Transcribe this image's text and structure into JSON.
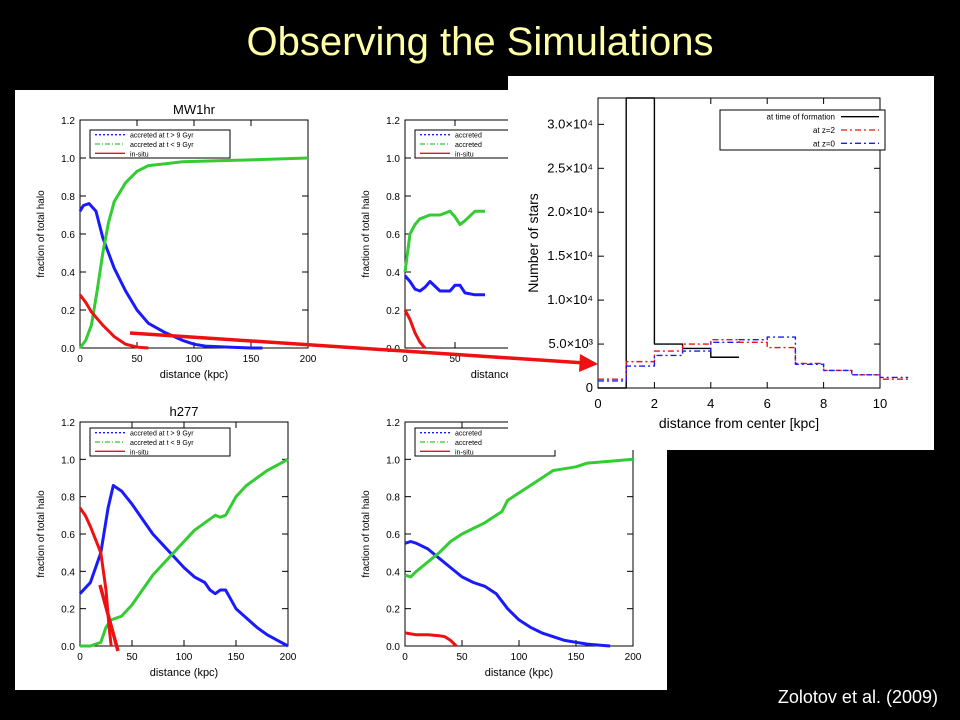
{
  "slide": {
    "title": "Observing the Simulations",
    "citation": "Zolotov et al. (2009)"
  },
  "colors": {
    "background": "#000000",
    "title": "#ffffa8",
    "accreted_late": "#1a1aff",
    "accreted_early": "#33cc33",
    "in_situ": "#ee1111",
    "arrow": "#ee1111"
  },
  "chart_data": [
    {
      "id": "mw1hr",
      "type": "line",
      "title": "MW1hr",
      "xlabel": "distance (kpc)",
      "ylabel": "fraction of total halo",
      "xlim": [
        0,
        200
      ],
      "ylim": [
        0,
        1.2
      ],
      "xticks": [
        0,
        50,
        100,
        150,
        200
      ],
      "yticks": [
        0.0,
        0.2,
        0.4,
        0.6,
        0.8,
        1.0,
        1.2
      ],
      "legend": [
        "accreted at t > 9 Gyr",
        "accreted at t < 9 Gyr",
        "in-situ"
      ],
      "series": [
        {
          "name": "accreted at t > 9 Gyr",
          "color": "#1a1aff",
          "x": [
            0,
            3,
            8,
            14,
            20,
            30,
            40,
            50,
            60,
            75,
            90,
            100,
            110,
            130,
            150,
            160
          ],
          "y": [
            0.72,
            0.75,
            0.76,
            0.72,
            0.58,
            0.42,
            0.3,
            0.2,
            0.13,
            0.08,
            0.04,
            0.02,
            0.01,
            0.005,
            0.0,
            0.0
          ]
        },
        {
          "name": "accreted at t < 9 Gyr",
          "color": "#33cc33",
          "x": [
            0,
            5,
            10,
            15,
            20,
            25,
            30,
            40,
            50,
            60,
            75,
            90,
            120,
            150,
            200
          ],
          "y": [
            0.0,
            0.04,
            0.12,
            0.3,
            0.5,
            0.66,
            0.77,
            0.87,
            0.93,
            0.96,
            0.97,
            0.98,
            0.985,
            0.99,
            1.0
          ]
        },
        {
          "name": "in-situ",
          "color": "#ee1111",
          "x": [
            0,
            5,
            10,
            20,
            30,
            40,
            50,
            60
          ],
          "y": [
            0.28,
            0.24,
            0.19,
            0.12,
            0.06,
            0.02,
            0.005,
            0.0
          ]
        }
      ]
    },
    {
      "id": "halo-top-right",
      "type": "line",
      "title": "",
      "xlabel": "distance (kpc)",
      "ylabel": "fraction of total halo",
      "xlim": [
        0,
        200
      ],
      "ylim": [
        0,
        1.2
      ],
      "xticks": [
        0,
        50
      ],
      "yticks": [
        0.0,
        0.2,
        0.4,
        0.6,
        0.8,
        1.0,
        1.2
      ],
      "legend": [
        "accreted",
        "accreted",
        "in-situ"
      ],
      "series": [
        {
          "name": "accreted",
          "color": "#1a1aff",
          "x": [
            0,
            5,
            10,
            15,
            20,
            25,
            35,
            45,
            50,
            55,
            60,
            70,
            80
          ],
          "y": [
            0.38,
            0.35,
            0.31,
            0.3,
            0.32,
            0.35,
            0.3,
            0.3,
            0.33,
            0.33,
            0.29,
            0.28,
            0.28
          ]
        },
        {
          "name": "accreted",
          "color": "#33cc33",
          "x": [
            0,
            5,
            10,
            15,
            25,
            35,
            45,
            50,
            55,
            60,
            70,
            80
          ],
          "y": [
            0.4,
            0.6,
            0.65,
            0.68,
            0.7,
            0.7,
            0.72,
            0.69,
            0.65,
            0.67,
            0.72,
            0.72
          ]
        },
        {
          "name": "in-situ",
          "color": "#ee1111",
          "x": [
            0,
            5,
            10,
            15,
            20
          ],
          "y": [
            0.2,
            0.15,
            0.08,
            0.03,
            0.0
          ]
        }
      ]
    },
    {
      "id": "h277",
      "type": "line",
      "title": "h277",
      "xlabel": "distance (kpc)",
      "ylabel": "fraction of total halo",
      "xlim": [
        0,
        200
      ],
      "ylim": [
        0,
        1.2
      ],
      "xticks": [
        0,
        50,
        100,
        150,
        200
      ],
      "yticks": [
        0.0,
        0.2,
        0.4,
        0.6,
        0.8,
        1.0,
        1.2
      ],
      "legend": [
        "accreted at t > 9 Gyr",
        "accreted at t < 9 Gyr",
        "in-situ"
      ],
      "series": [
        {
          "name": "accreted at t > 9 Gyr",
          "color": "#1a1aff",
          "x": [
            0,
            10,
            20,
            27,
            32,
            40,
            50,
            60,
            70,
            80,
            90,
            100,
            110,
            120,
            125,
            130,
            135,
            140,
            145,
            150,
            160,
            170,
            180,
            190,
            200
          ],
          "y": [
            0.28,
            0.34,
            0.5,
            0.74,
            0.86,
            0.83,
            0.76,
            0.68,
            0.6,
            0.54,
            0.48,
            0.42,
            0.37,
            0.34,
            0.3,
            0.28,
            0.3,
            0.3,
            0.25,
            0.2,
            0.15,
            0.1,
            0.06,
            0.03,
            0.0
          ]
        },
        {
          "name": "accreted at t < 9 Gyr",
          "color": "#33cc33",
          "x": [
            0,
            10,
            20,
            25,
            30,
            40,
            50,
            60,
            70,
            80,
            90,
            100,
            110,
            120,
            130,
            135,
            140,
            150,
            160,
            170,
            180,
            190,
            200
          ],
          "y": [
            0.0,
            0.0,
            0.02,
            0.1,
            0.14,
            0.16,
            0.22,
            0.3,
            0.38,
            0.44,
            0.5,
            0.56,
            0.62,
            0.66,
            0.7,
            0.69,
            0.7,
            0.8,
            0.86,
            0.9,
            0.94,
            0.97,
            1.0
          ]
        },
        {
          "name": "in-situ",
          "color": "#ee1111",
          "x": [
            0,
            5,
            10,
            15,
            20,
            25,
            28,
            30
          ],
          "y": [
            0.74,
            0.7,
            0.64,
            0.57,
            0.5,
            0.3,
            0.1,
            0.0
          ]
        }
      ]
    },
    {
      "id": "halo-bottom-right",
      "type": "line",
      "title": "",
      "xlabel": "distance (kpc)",
      "ylabel": "fraction of total halo",
      "xlim": [
        0,
        200
      ],
      "ylim": [
        0,
        1.2
      ],
      "xticks": [
        0,
        50,
        100,
        150,
        200
      ],
      "yticks": [
        0.0,
        0.2,
        0.4,
        0.6,
        0.8,
        1.0,
        1.2
      ],
      "legend": [
        "accreted",
        "accreted",
        "in-situ"
      ],
      "series": [
        {
          "name": "accreted",
          "color": "#1a1aff",
          "x": [
            0,
            5,
            10,
            20,
            30,
            40,
            50,
            60,
            70,
            80,
            85,
            90,
            100,
            110,
            120,
            130,
            140,
            150,
            160,
            170,
            180
          ],
          "y": [
            0.55,
            0.56,
            0.55,
            0.52,
            0.47,
            0.42,
            0.37,
            0.34,
            0.32,
            0.28,
            0.24,
            0.2,
            0.14,
            0.1,
            0.07,
            0.05,
            0.03,
            0.02,
            0.01,
            0.005,
            0.0
          ]
        },
        {
          "name": "accreted",
          "color": "#33cc33",
          "x": [
            0,
            5,
            10,
            20,
            30,
            40,
            50,
            60,
            70,
            80,
            85,
            90,
            100,
            110,
            120,
            130,
            140,
            150,
            160,
            180,
            200
          ],
          "y": [
            0.38,
            0.37,
            0.4,
            0.45,
            0.5,
            0.56,
            0.6,
            0.63,
            0.66,
            0.7,
            0.72,
            0.78,
            0.82,
            0.86,
            0.9,
            0.94,
            0.95,
            0.96,
            0.98,
            0.99,
            1.0
          ]
        },
        {
          "name": "in-situ",
          "color": "#ee1111",
          "x": [
            0,
            10,
            20,
            30,
            35,
            40,
            45
          ],
          "y": [
            0.07,
            0.06,
            0.06,
            0.055,
            0.05,
            0.03,
            0.0
          ]
        }
      ]
    },
    {
      "id": "inset-histogram",
      "type": "line",
      "title": "",
      "xlabel": "distance from center [kpc]",
      "ylabel": "Number of stars",
      "xlim": [
        0,
        10
      ],
      "ylim": [
        0,
        33000
      ],
      "xticks": [
        0,
        2,
        4,
        6,
        8,
        10
      ],
      "xtick_labels": [
        "0",
        "2",
        "4",
        "6",
        "8",
        "10"
      ],
      "yticks": [
        0,
        5000,
        10000,
        15000,
        20000,
        25000,
        30000
      ],
      "ytick_labels": [
        "0",
        "5.0×10³",
        "1.0×10⁴",
        "1.5×10⁴",
        "2.0×10⁴",
        "2.5×10⁴",
        "3.0×10⁴"
      ],
      "legend": [
        "at time of formation",
        "at z=2",
        "at z=0"
      ],
      "series": [
        {
          "name": "at time of formation",
          "color": "#000000",
          "dash": "",
          "bins": [
            0,
            1,
            2,
            3,
            4
          ],
          "values": [
            0,
            33000,
            5000,
            4500,
            3500
          ]
        },
        {
          "name": "at z=2",
          "color": "#ee1111",
          "dash": "6,3,2,3",
          "bins": [
            0,
            1,
            2,
            3,
            4,
            5,
            6,
            7,
            8,
            9,
            10
          ],
          "values": [
            1000,
            3000,
            4200,
            5000,
            5500,
            5200,
            4600,
            2800,
            2000,
            1500,
            1000
          ]
        },
        {
          "name": "at z=0",
          "color": "#1a1aff",
          "dash": "6,3,2,3",
          "bins": [
            0,
            1,
            2,
            3,
            4,
            5,
            6,
            7,
            8,
            9,
            10
          ],
          "values": [
            800,
            2500,
            3700,
            4200,
            5200,
            5500,
            5800,
            2700,
            2000,
            1500,
            1200
          ]
        }
      ]
    }
  ]
}
